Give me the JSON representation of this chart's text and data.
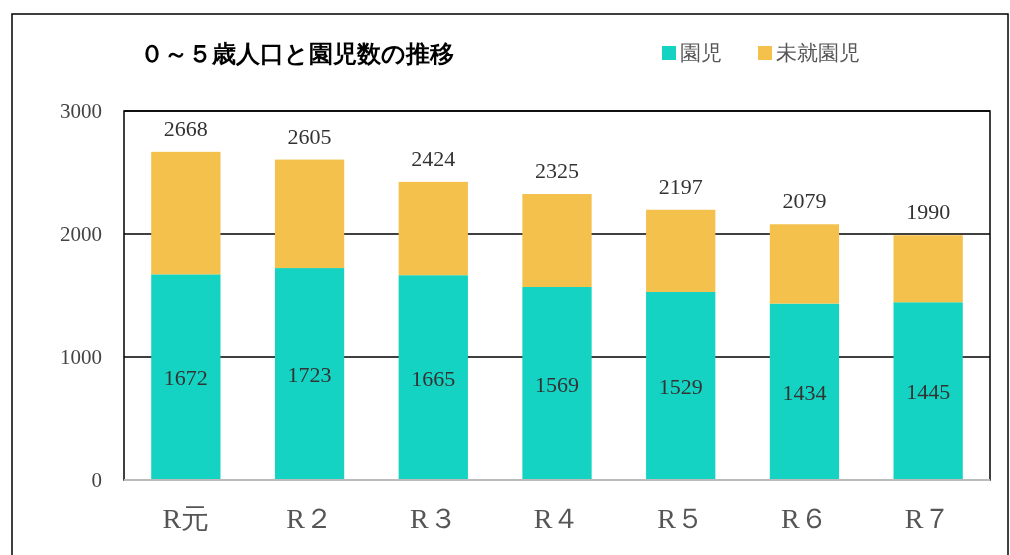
{
  "chart_data": {
    "type": "bar",
    "title": "０～５歳人口と園児数の推移",
    "stacked": true,
    "categories": [
      "R元",
      "R２",
      "R３",
      "R４",
      "R５",
      "R６",
      "R７"
    ],
    "series": [
      {
        "name": "園児",
        "color": "#14d3c3",
        "values": [
          1672,
          1723,
          1665,
          1569,
          1529,
          1434,
          1445
        ],
        "value_labels": [
          "1672",
          "1723",
          "1665",
          "1569",
          "1529",
          "1434",
          "1445"
        ]
      },
      {
        "name": "未就園児",
        "color": "#f3c14c",
        "values": [
          996,
          882,
          759,
          756,
          668,
          645,
          545
        ]
      }
    ],
    "totals": [
      "2668",
      "2605",
      "2424",
      "2325",
      "2197",
      "2079",
      "1990"
    ],
    "ylim": [
      0,
      3000
    ],
    "yticks": [
      0,
      1000,
      2000,
      3000
    ],
    "grid": "y",
    "legend": "top right"
  }
}
